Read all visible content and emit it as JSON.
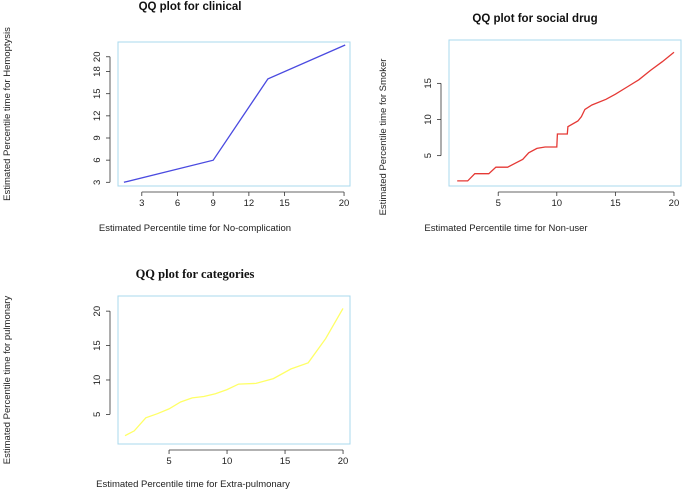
{
  "chart_data": [
    {
      "type": "line",
      "title": "QQ plot for clinical",
      "xlabel": "Estimated Percentile time for No-complication",
      "ylabel": "Estimated Percentile time for Hemoptysis",
      "x_ticks": [
        3,
        6,
        9,
        12,
        15,
        20
      ],
      "y_ticks": [
        3,
        6,
        9,
        12,
        15,
        18,
        20
      ],
      "xlim": [
        1,
        20.5
      ],
      "ylim": [
        2.5,
        22
      ],
      "line_color": "#4a4ae0",
      "series": [
        {
          "name": "clinical",
          "x": [
            1.5,
            9,
            13.6,
            20.1
          ],
          "y": [
            3,
            6,
            17,
            21.6
          ]
        }
      ]
    },
    {
      "type": "line",
      "title": "QQ plot for social drug",
      "xlabel": "Estimated Percentile time for Non-user",
      "ylabel": "Estimated Percentile time for Smoker",
      "x_ticks": [
        5,
        10,
        15,
        20
      ],
      "y_ticks": [
        5,
        10,
        15
      ],
      "xlim": [
        0.8,
        20.6
      ],
      "ylim": [
        0.8,
        21
      ],
      "line_color": "#e53935",
      "series": [
        {
          "name": "social drug",
          "x": [
            1.5,
            2.4,
            3,
            4.2,
            4.8,
            5.8,
            6.5,
            7.1,
            7.6,
            8.3,
            9,
            10,
            10.05,
            10.9,
            10.95,
            11.8,
            12.1,
            12.4,
            13,
            14.2,
            15,
            16,
            17,
            18,
            19,
            20
          ],
          "y": [
            1.5,
            1.5,
            2.5,
            2.5,
            3.4,
            3.4,
            4,
            4.5,
            5.4,
            6,
            6.2,
            6.2,
            8,
            8,
            9,
            9.8,
            10.4,
            11.4,
            12,
            12.8,
            13.5,
            14.5,
            15.5,
            16.8,
            18,
            19.3
          ]
        }
      ]
    },
    {
      "type": "line",
      "title": "QQ plot for categories",
      "xlabel": "Estimated Percentile time for Extra-pulmonary",
      "ylabel": "Estimated Percentile time for pulmonary",
      "x_ticks": [
        5,
        10,
        15,
        20
      ],
      "y_ticks": [
        5,
        10,
        15,
        20
      ],
      "xlim": [
        0.6,
        20.6
      ],
      "ylim": [
        0.7,
        22.2
      ],
      "line_color": "#ffff66",
      "series": [
        {
          "name": "categories",
          "x": [
            1.2,
            2,
            3,
            4,
            5,
            6,
            7,
            8,
            9,
            10,
            11,
            12.5,
            14,
            15.5,
            17,
            18.5,
            20
          ],
          "y": [
            1.9,
            2.6,
            4.5,
            5.1,
            5.8,
            6.8,
            7.4,
            7.6,
            8,
            8.6,
            9.4,
            9.5,
            10.2,
            11.6,
            12.5,
            16,
            20.4
          ]
        }
      ]
    }
  ]
}
